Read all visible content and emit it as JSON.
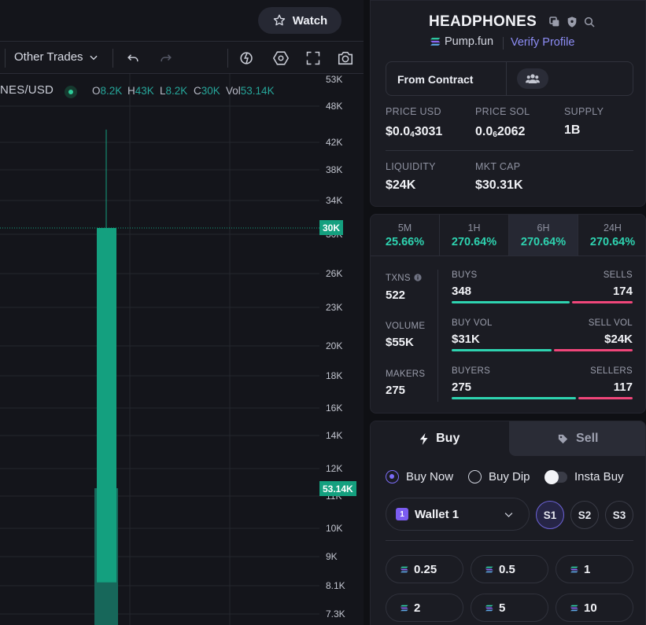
{
  "header": {
    "watch_label": "Watch"
  },
  "toolbar": {
    "trades_dropdown": "Other Trades"
  },
  "legend": {
    "pair": "NES/USD",
    "open_key": "O",
    "open": "8.2K",
    "high_key": "H",
    "high": "43K",
    "low_key": "L",
    "low": "8.2K",
    "close_key": "C",
    "close": "30K",
    "vol_key": "Vol",
    "vol": "53.14K"
  },
  "price_axis": {
    "ticks": [
      "53K",
      "48K",
      "42K",
      "38K",
      "34K",
      "30K",
      "26K",
      "23K",
      "20K",
      "18K",
      "16K",
      "14K",
      "12K",
      "11K",
      "10K",
      "9K",
      "8.1K",
      "7.3K"
    ],
    "last_price_tag": "30K",
    "volume_tag": "53.14K"
  },
  "chart_data": {
    "type": "candlestick",
    "x": [
      "candle-1"
    ],
    "series": [
      {
        "open": 8200,
        "high": 43000,
        "low": 8200,
        "close": 30000,
        "volume": "53.14K"
      }
    ],
    "y_scale": "log",
    "ylim": [
      7300,
      53000
    ],
    "colors": {
      "up": "#14a07f",
      "grid": "#24262e"
    }
  },
  "token": {
    "name": "HEADPHONES",
    "platform": "Pump.fun",
    "verify_link": "Verify Profile",
    "from_contract": "From Contract"
  },
  "stats": {
    "price_usd_label": "PRICE USD",
    "price_usd_pre": "$0.0",
    "price_usd_sub": "4",
    "price_usd_post": "3031",
    "price_sol_label": "PRICE SOL",
    "price_sol_pre": "0.0",
    "price_sol_sub": "6",
    "price_sol_post": "2062",
    "supply_label": "SUPPLY",
    "supply": "1B",
    "liquidity_label": "LIQUIDITY",
    "liquidity": "$24K",
    "mktcap_label": "MKT CAP",
    "mktcap": "$30.31K"
  },
  "timeframes": [
    {
      "label": "5M",
      "value": "25.66%"
    },
    {
      "label": "1H",
      "value": "270.64%"
    },
    {
      "label": "6H",
      "value": "270.64%"
    },
    {
      "label": "24H",
      "value": "270.64%"
    }
  ],
  "txns": {
    "txns_label": "TXNS",
    "txns": "522",
    "volume_label": "VOLUME",
    "volume": "$55K",
    "makers_label": "MAKERS",
    "makers": "275",
    "buys_label": "BUYS",
    "buys": "348",
    "sells_label": "SELLS",
    "sells": "174",
    "buyvol_label": "BUY VOL",
    "buyvol": "$31K",
    "sellvol_label": "SELL VOL",
    "sellvol": "$24K",
    "buyers_label": "BUYERS",
    "buyers": "275",
    "sellers_label": "SELLERS",
    "sellers": "117",
    "buys_ratio": 0.667,
    "vol_ratio": 0.564,
    "buyers_ratio": 0.7
  },
  "trade": {
    "buy_tab": "Buy",
    "sell_tab": "Sell",
    "buy_now": "Buy Now",
    "buy_dip": "Buy Dip",
    "insta_buy": "Insta Buy",
    "wallet_num": "1",
    "wallet": "Wallet 1",
    "slots": [
      "S1",
      "S2",
      "S3"
    ],
    "amounts": [
      "0.25",
      "0.5",
      "1",
      "2",
      "5",
      "10"
    ]
  },
  "colors": {
    "accent": "#7b6cf6",
    "positive": "#2ed3b0",
    "negative": "#f0467a",
    "candle_up": "#14a07f"
  }
}
